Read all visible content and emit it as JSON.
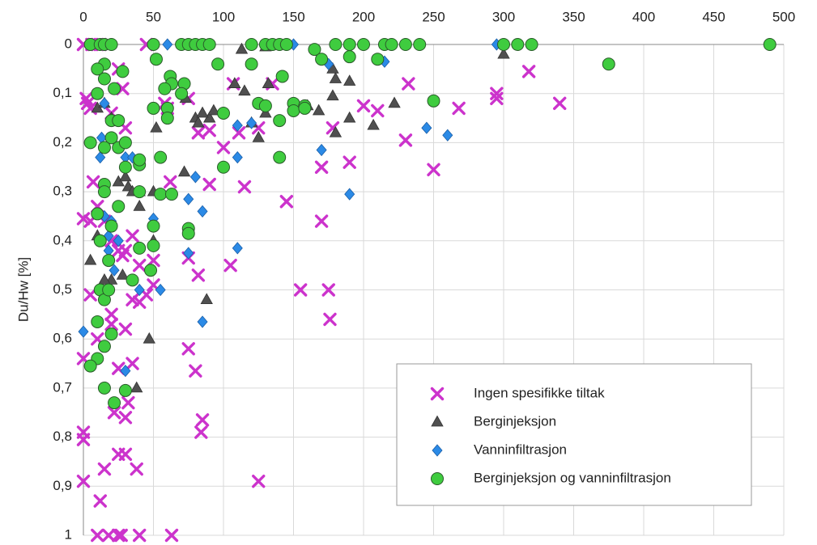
{
  "chart_data": {
    "type": "scatter",
    "y_label": "Du/Hw [%]",
    "xlim": [
      0,
      500
    ],
    "xticks": [
      0,
      50,
      100,
      150,
      200,
      250,
      300,
      350,
      400,
      450,
      500
    ],
    "ylim": [
      1,
      0
    ],
    "yticks": [
      0,
      {
        "value": 0.1,
        "label": "0,1"
      },
      {
        "value": 0.2,
        "label": "0,2"
      },
      {
        "value": 0.3,
        "label": "0,3"
      },
      {
        "value": 0.4,
        "label": "0,4"
      },
      {
        "value": 0.5,
        "label": "0,5"
      },
      {
        "value": 0.6,
        "label": "0,6"
      },
      {
        "value": 0.7,
        "label": "0,7"
      },
      {
        "value": 0.8,
        "label": "0,8"
      },
      {
        "value": 0.9,
        "label": "0,9"
      },
      1
    ],
    "x_axis_position": "top",
    "grid": true,
    "legend": "lower right",
    "series": [
      {
        "name": "Ingen spesifikke tiltak",
        "color": "#cc33cc",
        "marker": "x",
        "x": [
          0,
          6,
          10,
          45,
          2,
          3,
          5,
          7,
          12,
          20,
          28,
          25,
          30,
          58,
          60,
          75,
          82,
          90,
          100,
          107,
          111,
          125,
          115,
          135,
          145,
          170,
          170,
          178,
          190,
          200,
          210,
          230,
          232,
          250,
          268,
          295,
          295,
          318,
          340,
          0,
          5,
          10,
          15,
          20,
          25,
          28,
          30,
          35,
          40,
          50,
          50,
          35,
          40,
          45,
          5,
          10,
          20,
          20,
          25,
          30,
          35,
          75,
          82,
          105,
          155,
          175,
          176,
          75,
          80,
          85,
          84,
          125,
          0,
          0,
          0,
          0,
          12,
          15,
          22,
          25,
          30,
          30,
          32,
          38,
          10,
          18,
          25,
          27,
          40,
          63,
          90,
          62
        ],
        "values": [
          0,
          0,
          0,
          0,
          0.11,
          0.12,
          0.13,
          0.28,
          0,
          0.14,
          0.09,
          0.05,
          0.17,
          0.12,
          0.13,
          0.11,
          0.18,
          0.175,
          0.21,
          0.08,
          0.18,
          0.17,
          0.29,
          0.08,
          0.32,
          0.25,
          0.36,
          0.17,
          0.24,
          0.125,
          0.135,
          0.195,
          0.08,
          0.255,
          0.13,
          0.1,
          0.11,
          0.055,
          0.12,
          0.355,
          0.36,
          0.33,
          0.36,
          0.4,
          0.42,
          0.43,
          0.42,
          0.39,
          0.45,
          0.44,
          0.49,
          0.52,
          0.525,
          0.51,
          0.51,
          0.6,
          0.55,
          0.57,
          0.66,
          0.58,
          0.65,
          0.435,
          0.47,
          0.45,
          0.5,
          0.5,
          0.56,
          0.62,
          0.665,
          0.765,
          0.79,
          0.89,
          0.64,
          0.79,
          0.805,
          0.89,
          0.93,
          0.865,
          0.75,
          0.835,
          0.835,
          0.76,
          0.73,
          0.865,
          1,
          1,
          1,
          1,
          1,
          1,
          0.285,
          0.28
        ]
      },
      {
        "name": "Berginjeksjon",
        "color": "#505050",
        "marker": "triangle",
        "x": [
          10,
          15,
          20,
          25,
          30,
          32,
          35,
          40,
          50,
          52,
          50,
          47,
          38,
          28,
          20,
          15,
          10,
          5,
          72,
          73,
          80,
          82,
          90,
          93,
          108,
          113,
          115,
          130,
          132,
          130,
          125,
          120,
          160,
          168,
          178,
          180,
          178,
          180,
          190,
          190,
          207,
          222,
          300,
          88,
          40,
          85
        ],
        "values": [
          0.13,
          0.12,
          0.15,
          0.28,
          0.27,
          0.29,
          0.3,
          0.3,
          0.3,
          0.17,
          0.4,
          0.6,
          0.7,
          0.47,
          0.48,
          0.48,
          0.39,
          0.44,
          0.26,
          0.11,
          0.15,
          0.16,
          0.15,
          0.135,
          0.08,
          0.01,
          0.095,
          0.005,
          0.08,
          0.14,
          0.19,
          0.16,
          0.125,
          0.135,
          0.05,
          0.07,
          0.105,
          0.18,
          0.075,
          0.15,
          0.165,
          0.12,
          0.02,
          0.52,
          0.33,
          0.14
        ]
      },
      {
        "name": "Vanninfiltrasjon",
        "color": "#2b8ae6",
        "marker": "diamond",
        "x": [
          15,
          18,
          20,
          25,
          18,
          22,
          40,
          55,
          50,
          75,
          80,
          85,
          75,
          85,
          110,
          0,
          30,
          30,
          35,
          15,
          12,
          13,
          60,
          110,
          110,
          120,
          150,
          170,
          190,
          215,
          245,
          260,
          175,
          295
        ],
        "values": [
          0.35,
          0.39,
          0.36,
          0.4,
          0.42,
          0.46,
          0.5,
          0.5,
          0.355,
          0.315,
          0.27,
          0.34,
          0.425,
          0.565,
          0.415,
          0.585,
          0.665,
          0.23,
          0.23,
          0.12,
          0.23,
          0.19,
          0,
          0.165,
          0.23,
          0.16,
          0,
          0.215,
          0.305,
          0.035,
          0.17,
          0.185,
          0.04,
          0
        ]
      },
      {
        "name": "Berginjeksjon og vanninfiltrasjon",
        "color": "#3fcc3f",
        "marker": "circle",
        "x": [
          5,
          12,
          15,
          20,
          50,
          52,
          70,
          75,
          80,
          85,
          90,
          120,
          130,
          135,
          140,
          145,
          165,
          170,
          180,
          190,
          200,
          215,
          220,
          230,
          240,
          300,
          310,
          320,
          490,
          375,
          210,
          190,
          142,
          120,
          96,
          62,
          63,
          58,
          72,
          70,
          60,
          50,
          60,
          100,
          125,
          130,
          140,
          150,
          150,
          158,
          158,
          250,
          140,
          100,
          55,
          55,
          63,
          75,
          75,
          50,
          50,
          48,
          40,
          35,
          40,
          40,
          40,
          30,
          25,
          30,
          20,
          20,
          25,
          28,
          22,
          15,
          10,
          15,
          10,
          5,
          15,
          15,
          15,
          25,
          20,
          10,
          12,
          18,
          12,
          15,
          18,
          10,
          20,
          15,
          10,
          5,
          15,
          30,
          22
        ],
        "values": [
          0,
          0,
          0,
          0,
          0,
          0.03,
          0,
          0,
          0,
          0,
          0,
          0,
          0,
          0,
          0,
          0,
          0.01,
          0.03,
          0,
          0,
          0,
          0,
          0,
          0,
          0,
          0,
          0,
          0,
          0,
          0.04,
          0.03,
          0.025,
          0.065,
          0.04,
          0.04,
          0.065,
          0.08,
          0.09,
          0.08,
          0.1,
          0.13,
          0.13,
          0.15,
          0.14,
          0.12,
          0.125,
          0.155,
          0.12,
          0.135,
          0.125,
          0.13,
          0.115,
          0.23,
          0.25,
          0.23,
          0.305,
          0.305,
          0.375,
          0.385,
          0.37,
          0.41,
          0.46,
          0.415,
          0.48,
          0.3,
          0.245,
          0.235,
          0.25,
          0.21,
          0.2,
          0.19,
          0.155,
          0.155,
          0.055,
          0.09,
          0.04,
          0.05,
          0.07,
          0.1,
          0.2,
          0.21,
          0.285,
          0.3,
          0.33,
          0.37,
          0.345,
          0.4,
          0.44,
          0.5,
          0.52,
          0.5,
          0.565,
          0.59,
          0.615,
          0.64,
          0.655,
          0.7,
          0.705,
          0.73
        ]
      }
    ]
  }
}
